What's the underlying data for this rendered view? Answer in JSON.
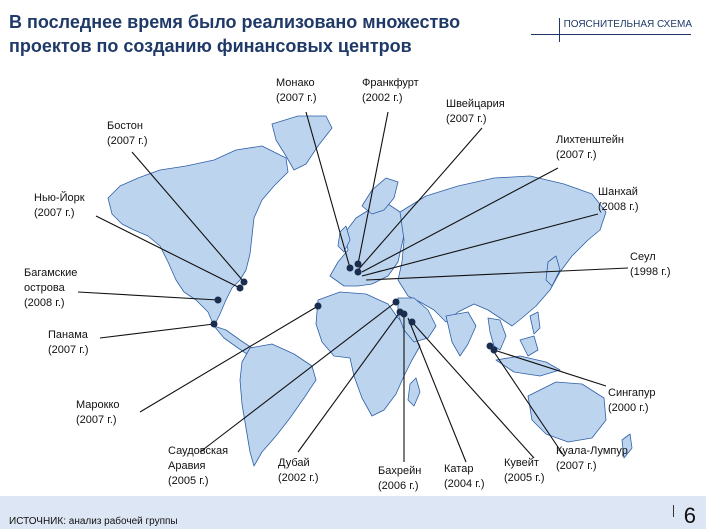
{
  "title": "В последнее время было реализовано множество проектов по созданию финансовых центров",
  "tag": "ПОЯСНИТЕЛЬНАЯ СХЕМА",
  "source": "ИСТОЧНИК: анализ рабочей группы",
  "page_number": "6",
  "colors": {
    "land": "#bcd4ee",
    "outline": "#2f5fa6",
    "title": "#1f3a68",
    "footer": "#dde6f4"
  },
  "cities": [
    {
      "id": "monaco",
      "name": "Монако",
      "year": "(2007 г.)"
    },
    {
      "id": "frankfurt",
      "name": "Франкфурт",
      "year": "(2002 г.)"
    },
    {
      "id": "switzerland",
      "name": "Швейцария",
      "year": "(2007 г.)"
    },
    {
      "id": "boston",
      "name": "Бостон",
      "year": "(2007 г.)"
    },
    {
      "id": "liechtenstein",
      "name": "Лихтенштейн",
      "year": "(2007 г.)"
    },
    {
      "id": "newyork",
      "name": "Нью-Йорк",
      "year": "(2007 г.)"
    },
    {
      "id": "shanghai",
      "name": "Шанхай",
      "year": "(2008 г.)"
    },
    {
      "id": "seoul",
      "name": "Сеул",
      "year": "(1998 г.)"
    },
    {
      "id": "bahamas",
      "name": "Багамские",
      "name2": "острова",
      "year": "(2008 г.)"
    },
    {
      "id": "panama",
      "name": "Панама",
      "year": "(2007 г.)"
    },
    {
      "id": "morocco",
      "name": "Марокко",
      "year": "(2007 г.)"
    },
    {
      "id": "singapore",
      "name": "Сингапур",
      "year": "(2000 г.)"
    },
    {
      "id": "saudi",
      "name": "Саудовская",
      "name2": "Аравия",
      "year": "(2005 г.)"
    },
    {
      "id": "dubai",
      "name": "Дубай",
      "year": "(2002 г.)"
    },
    {
      "id": "bahrain",
      "name": "Бахрейн",
      "year": "(2006 г.)"
    },
    {
      "id": "qatar",
      "name": "Катар",
      "year": "(2004 г.)"
    },
    {
      "id": "kuwait",
      "name": "Кувейт",
      "year": "(2005 г.)"
    },
    {
      "id": "kualalumpur",
      "name": "Куала-Лумпур",
      "year": "(2007 г.)"
    }
  ]
}
